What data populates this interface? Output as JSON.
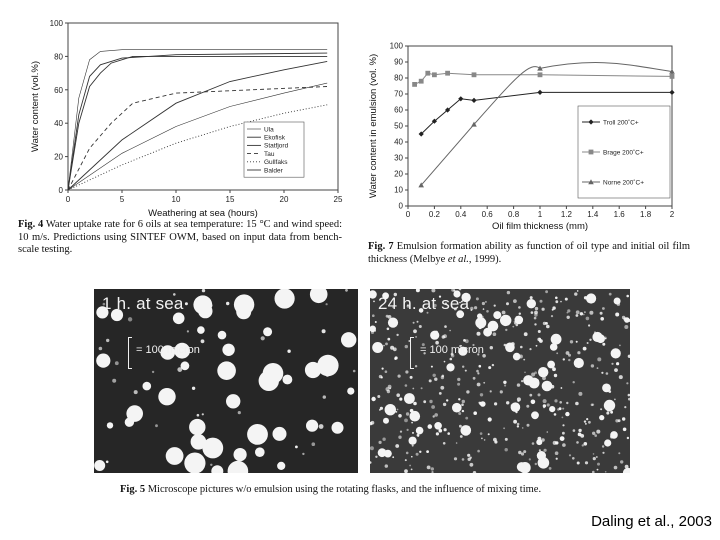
{
  "chart_data": [
    {
      "type": "line",
      "ylabel": "Water content (vol.%)",
      "xlabel": "Weathering at sea (hours)",
      "xlim": [
        0,
        25
      ],
      "ylim": [
        0,
        100
      ],
      "xticks": [
        "0",
        "5",
        "10",
        "15",
        "20",
        "25"
      ],
      "yticks": [
        "0",
        "20",
        "40",
        "60",
        "80",
        "100"
      ],
      "legend_position": "bottom-right",
      "series": [
        {
          "name": "Ula",
          "style": "solid-thin",
          "x": [
            0,
            1,
            2,
            3,
            5,
            10,
            24
          ],
          "y": [
            0,
            55,
            78,
            83,
            84,
            84,
            84
          ]
        },
        {
          "name": "Ekofisk",
          "style": "solid",
          "x": [
            0,
            1,
            2,
            3,
            5,
            10,
            24
          ],
          "y": [
            0,
            45,
            68,
            75,
            79,
            81,
            82
          ]
        },
        {
          "name": "Statfjord",
          "style": "solid",
          "x": [
            0,
            1,
            2,
            3,
            4,
            6,
            10,
            24
          ],
          "y": [
            0,
            40,
            62,
            70,
            76,
            80,
            80,
            80
          ]
        },
        {
          "name": "Tau",
          "style": "dashed",
          "x": [
            0,
            2,
            4,
            6,
            10,
            24
          ],
          "y": [
            0,
            25,
            40,
            52,
            58,
            62
          ]
        },
        {
          "name": "Gullfaks",
          "style": "dotted",
          "x": [
            0,
            5,
            10,
            15,
            20,
            24
          ],
          "y": [
            0,
            15,
            28,
            38,
            46,
            51
          ]
        },
        {
          "name": "Balder",
          "style": "solid",
          "x": [
            0,
            5,
            10,
            15,
            20,
            24
          ],
          "y": [
            0,
            30,
            52,
            65,
            72,
            77
          ]
        },
        {
          "name": "",
          "style": "solid-thin",
          "x": [
            0,
            5,
            10,
            15,
            20,
            24
          ],
          "y": [
            0,
            22,
            38,
            50,
            58,
            64
          ]
        }
      ]
    },
    {
      "type": "line",
      "ylabel": "Water content in emulsion (vol. %)",
      "xlabel": "Oil film thickness (mm)",
      "xlim": [
        0,
        2
      ],
      "ylim": [
        0,
        100
      ],
      "xticks": [
        "0",
        "0.2",
        "0.4",
        "0.6",
        "0.8",
        "1",
        "1.2",
        "1.4",
        "1.6",
        "1.8",
        "2"
      ],
      "yticks": [
        "0",
        "10",
        "20",
        "30",
        "40",
        "50",
        "60",
        "70",
        "80",
        "90",
        "100"
      ],
      "legend_position": "right",
      "series": [
        {
          "name": "Troll 200˚C+",
          "marker": "diamond",
          "x": [
            0.1,
            0.2,
            0.3,
            0.4,
            0.5,
            1,
            2
          ],
          "y": [
            45,
            53,
            60,
            67,
            66,
            71,
            71
          ]
        },
        {
          "name": "Brage 200˚C+",
          "marker": "square",
          "x": [
            0.05,
            0.1,
            0.15,
            0.2,
            0.3,
            0.5,
            1,
            2
          ],
          "y": [
            76,
            78,
            83,
            82,
            83,
            82,
            82,
            81
          ]
        },
        {
          "name": "Norne 200˚C+",
          "marker": "triangle",
          "x": [
            0.1,
            0.5,
            1,
            2
          ],
          "y": [
            13,
            51,
            86,
            84
          ]
        }
      ]
    }
  ],
  "captions": {
    "fig4_label": "Fig. 4",
    "fig4_text": " Water uptake rate for 6 oils at sea temperature: 15 °C and wind speed: 10 m/s. Predictions using SINTEF OWM, based on input data from bench-scale testing.",
    "fig7_label": "Fig. 7",
    "fig7_text_a": " Emulsion formation ability as function of oil type and initial oil film thickness (Melbye ",
    "fig7_text_italic": "et al.",
    "fig7_text_b": ", 1999).",
    "fig5_label": "Fig. 5",
    "fig5_text": " Microscope pictures w/o emulsion using the rotating flasks, and the influence of mixing time."
  },
  "micrographs": [
    {
      "title": "1 h. at sea",
      "scale_label": "= 100 micron"
    },
    {
      "title": "24 h. at sea",
      "scale_label": "= 100 micron"
    }
  ],
  "citation": "Daling et al., 2003"
}
